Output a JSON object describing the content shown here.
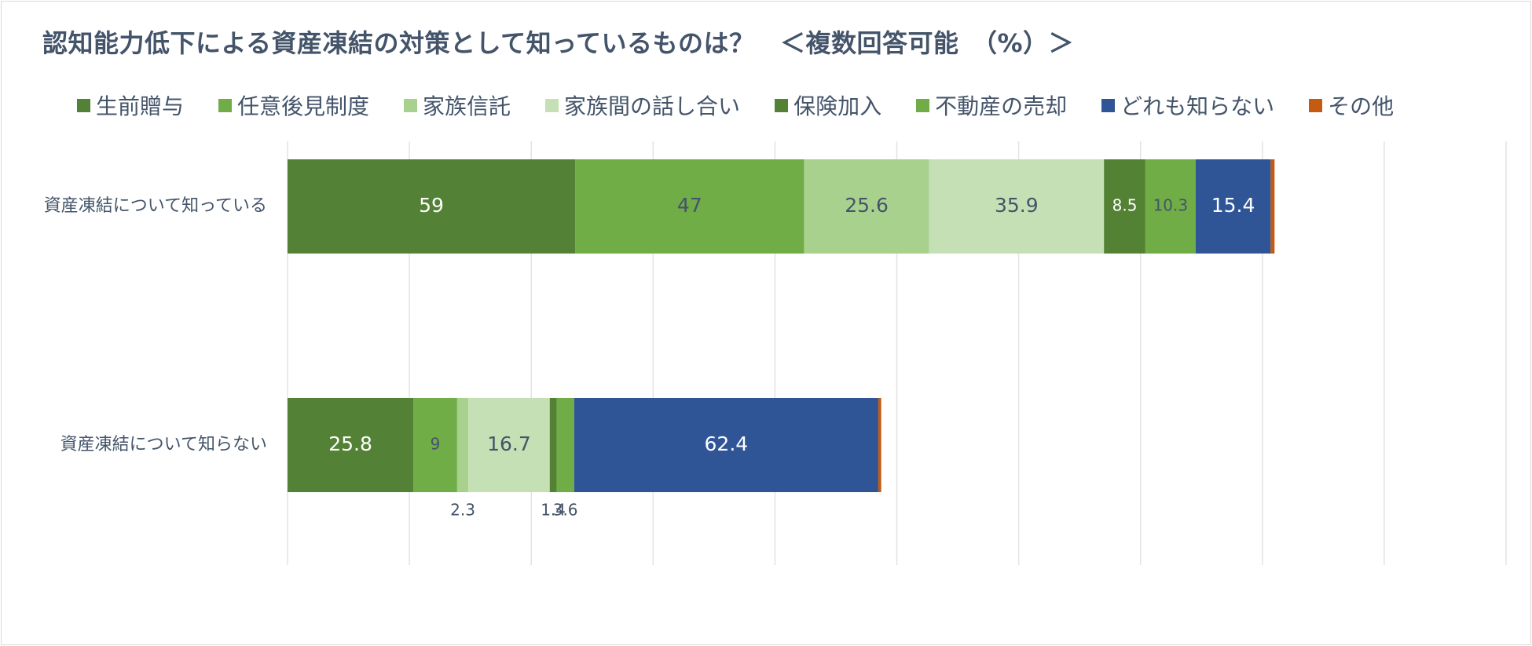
{
  "colors": {
    "生前贈与": "#538135",
    "任意後見制度": "#70ad47",
    "家族信託": "#a9d18e",
    "家族間の話し合い": "#c5e0b4",
    "保険加入": "#548235",
    "不動産の売却": "#70ad47",
    "どれも知らない": "#2f5597",
    "その他": "#c55a11"
  },
  "chart_data": {
    "type": "bar",
    "orientation": "horizontal",
    "stacked": true,
    "title": "認知能力低下による資産凍結の対策として知っているものは？　＜複数回答可能　（%）＞",
    "xlim": [
      0,
      250
    ],
    "grid": true,
    "legend_position": "top",
    "categories": [
      "資産凍結について知っている",
      "資産凍結について知らない"
    ],
    "series": [
      {
        "name": "生前贈与",
        "values": [
          59,
          25.8
        ],
        "labels": [
          "59",
          "25.8"
        ]
      },
      {
        "name": "任意後見制度",
        "values": [
          47,
          9
        ],
        "labels": [
          "47",
          "9"
        ]
      },
      {
        "name": "家族信託",
        "values": [
          25.6,
          2.3
        ],
        "labels": [
          "25.6",
          "2.3"
        ]
      },
      {
        "name": "家族間の話し合い",
        "values": [
          35.9,
          16.7
        ],
        "labels": [
          "35.9",
          "16.7"
        ]
      },
      {
        "name": "保険加入",
        "values": [
          8.5,
          1.4
        ],
        "labels": [
          "8.5",
          "1.4"
        ]
      },
      {
        "name": "不動産の売却",
        "values": [
          10.3,
          3.6
        ],
        "labels": [
          "10.3",
          "3.6"
        ]
      },
      {
        "name": "どれも知らない",
        "values": [
          15.4,
          62.4
        ],
        "labels": [
          "15.4",
          "62.4"
        ]
      },
      {
        "name": "その他",
        "values": [
          0.8,
          0.6
        ],
        "labels": [
          "",
          ""
        ]
      }
    ]
  }
}
